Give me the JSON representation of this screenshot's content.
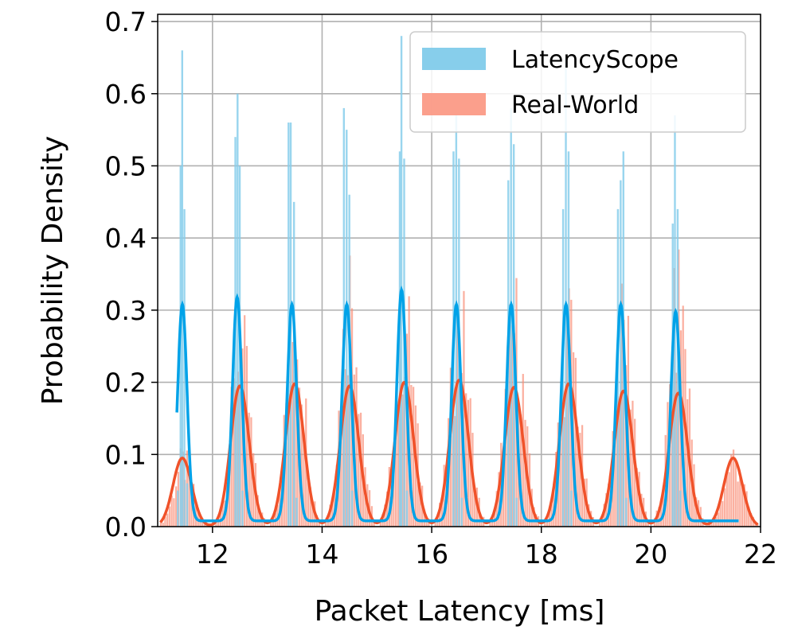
{
  "chart_data": {
    "type": "histogram+kde",
    "xlabel": "Packet Latency [ms]",
    "ylabel": "Probability Density",
    "xlim": [
      11,
      22
    ],
    "ylim": [
      0,
      0.71
    ],
    "xticks": [
      12,
      14,
      16,
      18,
      20,
      22
    ],
    "yticks": [
      0.0,
      0.1,
      0.2,
      0.3,
      0.4,
      0.5,
      0.6,
      0.7
    ],
    "xtick_labels": [
      "12",
      "14",
      "16",
      "18",
      "20",
      "22"
    ],
    "ytick_labels": [
      "0.0",
      "0.1",
      "0.2",
      "0.3",
      "0.4",
      "0.5",
      "0.6",
      "0.7"
    ],
    "grid": true,
    "legend_position": "top-right",
    "series": [
      {
        "name": "LatencyScope",
        "color": "#00a2e8",
        "fill": "#87ceeb",
        "peaks": [
          11.45,
          12.45,
          13.45,
          14.45,
          15.45,
          16.45,
          17.45,
          18.45,
          19.45,
          20.45
        ],
        "hist": [
          {
            "x": 11.35,
            "h": 0.05
          },
          {
            "x": 11.4,
            "h": 0.5
          },
          {
            "x": 11.43,
            "h": 0.66
          },
          {
            "x": 11.47,
            "h": 0.44
          },
          {
            "x": 11.52,
            "h": 0.06
          },
          {
            "x": 12.4,
            "h": 0.54
          },
          {
            "x": 12.44,
            "h": 0.6
          },
          {
            "x": 12.48,
            "h": 0.5
          },
          {
            "x": 12.53,
            "h": 0.05
          },
          {
            "x": 13.37,
            "h": 0.56
          },
          {
            "x": 13.41,
            "h": 0.56
          },
          {
            "x": 13.47,
            "h": 0.45
          },
          {
            "x": 13.52,
            "h": 0.04
          },
          {
            "x": 14.38,
            "h": 0.58
          },
          {
            "x": 14.43,
            "h": 0.55
          },
          {
            "x": 14.48,
            "h": 0.46
          },
          {
            "x": 14.53,
            "h": 0.05
          },
          {
            "x": 15.4,
            "h": 0.52
          },
          {
            "x": 15.43,
            "h": 0.68
          },
          {
            "x": 15.48,
            "h": 0.51
          },
          {
            "x": 15.53,
            "h": 0.05
          },
          {
            "x": 16.38,
            "h": 0.52
          },
          {
            "x": 16.43,
            "h": 0.57
          },
          {
            "x": 16.48,
            "h": 0.51
          },
          {
            "x": 16.53,
            "h": 0.04
          },
          {
            "x": 17.38,
            "h": 0.48
          },
          {
            "x": 17.43,
            "h": 0.58
          },
          {
            "x": 17.48,
            "h": 0.53
          },
          {
            "x": 17.53,
            "h": 0.04
          },
          {
            "x": 18.38,
            "h": 0.44
          },
          {
            "x": 18.43,
            "h": 0.65
          },
          {
            "x": 18.48,
            "h": 0.52
          },
          {
            "x": 18.53,
            "h": 0.05
          },
          {
            "x": 19.38,
            "h": 0.44
          },
          {
            "x": 19.43,
            "h": 0.48
          },
          {
            "x": 19.48,
            "h": 0.52
          },
          {
            "x": 19.53,
            "h": 0.04
          },
          {
            "x": 20.38,
            "h": 0.42
          },
          {
            "x": 20.42,
            "h": 0.57
          },
          {
            "x": 20.47,
            "h": 0.44
          },
          {
            "x": 20.52,
            "h": 0.05
          }
        ],
        "kde_peaks": [
          0.3,
          0.31,
          0.3,
          0.3,
          0.32,
          0.3,
          0.3,
          0.3,
          0.3,
          0.29
        ]
      },
      {
        "name": "Real-World",
        "color": "#f0522a",
        "fill": "#fa8e78",
        "peaks": [
          11.45,
          12.5,
          13.5,
          14.5,
          15.5,
          16.5,
          17.5,
          18.5,
          19.5,
          20.5,
          21.5
        ],
        "kde_peaks": [
          0.095,
          0.195,
          0.198,
          0.195,
          0.2,
          0.203,
          0.193,
          0.198,
          0.188,
          0.185,
          0.095
        ],
        "hist_peak": [
          0.1,
          0.28,
          0.32,
          0.38,
          0.32,
          0.32,
          0.32,
          0.31,
          0.31,
          0.36,
          0.11
        ]
      }
    ]
  }
}
